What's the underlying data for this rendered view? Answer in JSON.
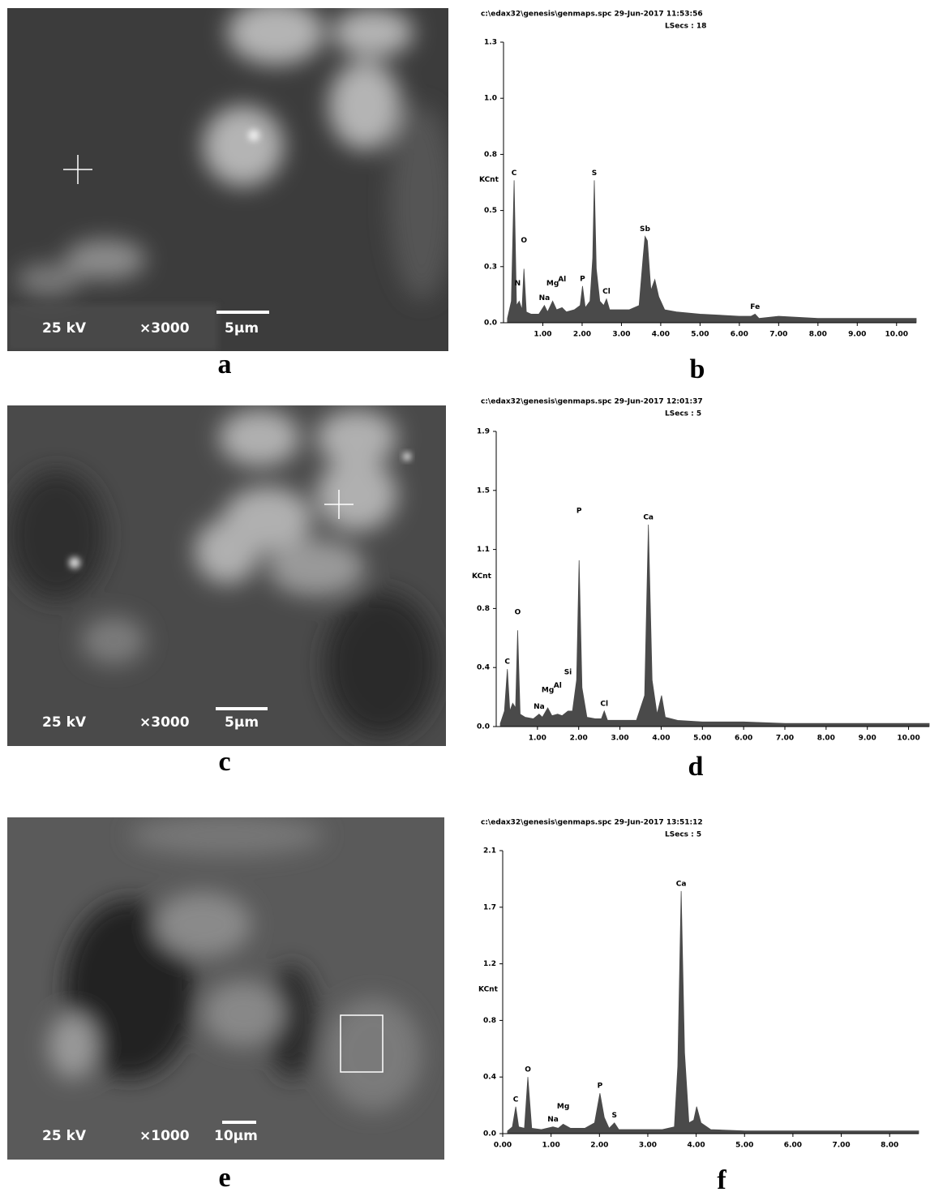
{
  "images": [
    {
      "label": "a",
      "voltage": "25 kV",
      "magnification": "×3000",
      "scale_bar": "5μm"
    },
    {
      "label": "c",
      "voltage": "25 kV",
      "magnification": "×3000",
      "scale_bar": "5μm"
    },
    {
      "label": "e",
      "voltage": "25 kV",
      "magnification": "×1000",
      "scale_bar": "10μm"
    }
  ],
  "chart_data": [
    {
      "type": "area",
      "panel_label": "b",
      "header": "c:\\edax32\\genesis\\genmaps.spc  29-Jun-2017 11:53:56",
      "lsecs": "LSecs : 18",
      "ylabel": "KCnt",
      "color": "#4a4a4a",
      "xlim": [
        0,
        10.5
      ],
      "ylim": [
        0,
        1.3
      ],
      "xticks": [
        {
          "value": 1,
          "label": "1.00"
        },
        {
          "value": 2,
          "label": "2.00"
        },
        {
          "value": 3,
          "label": "3.00"
        },
        {
          "value": 4,
          "label": "4.00"
        },
        {
          "value": 5,
          "label": "5.00"
        },
        {
          "value": 6,
          "label": "6.00"
        },
        {
          "value": 7,
          "label": "7.00"
        },
        {
          "value": 8,
          "label": "8.00"
        },
        {
          "value": 9,
          "label": "9.00"
        },
        {
          "value": 10,
          "label": "10.00"
        }
      ],
      "yticks": [
        {
          "value": 0,
          "label": "0.0"
        },
        {
          "value": 0.26,
          "label": "0.3"
        },
        {
          "value": 0.52,
          "label": "0.5"
        },
        {
          "value": 0.78,
          "label": "0.8"
        },
        {
          "value": 1.04,
          "label": "1.0"
        },
        {
          "value": 1.3,
          "label": "1.3"
        }
      ],
      "x": [
        0.1,
        0.2,
        0.27,
        0.33,
        0.4,
        0.47,
        0.52,
        0.58,
        0.7,
        0.9,
        1.04,
        1.12,
        1.25,
        1.35,
        1.49,
        1.6,
        1.8,
        1.95,
        2.01,
        2.08,
        2.2,
        2.27,
        2.31,
        2.36,
        2.45,
        2.55,
        2.62,
        2.7,
        2.9,
        3.2,
        3.45,
        3.55,
        3.6,
        3.66,
        3.75,
        3.85,
        3.95,
        4.1,
        4.4,
        5,
        6,
        6.3,
        6.4,
        6.5,
        7,
        8,
        9,
        10,
        10.5
      ],
      "values": [
        0.02,
        0.1,
        0.66,
        0.08,
        0.1,
        0.06,
        0.25,
        0.05,
        0.04,
        0.04,
        0.08,
        0.05,
        0.1,
        0.06,
        0.07,
        0.05,
        0.06,
        0.08,
        0.17,
        0.07,
        0.1,
        0.3,
        0.66,
        0.25,
        0.1,
        0.08,
        0.11,
        0.06,
        0.06,
        0.06,
        0.08,
        0.3,
        0.4,
        0.38,
        0.15,
        0.2,
        0.12,
        0.06,
        0.05,
        0.04,
        0.03,
        0.03,
        0.04,
        0.02,
        0.03,
        0.02,
        0.02,
        0.02,
        0.02
      ],
      "annotations": [
        {
          "text": "C",
          "x": 0.27
        },
        {
          "text": "N",
          "x": 0.36
        },
        {
          "text": "O",
          "x": 0.52
        },
        {
          "text": "Na",
          "x": 1.04
        },
        {
          "text": "Mg",
          "x": 1.25
        },
        {
          "text": "Al",
          "x": 1.49
        },
        {
          "text": "P",
          "x": 2.01
        },
        {
          "text": "S",
          "x": 2.31
        },
        {
          "text": "Cl",
          "x": 2.62
        },
        {
          "text": "Sb",
          "x": 3.6
        },
        {
          "text": "Fe",
          "x": 6.4
        }
      ]
    },
    {
      "type": "area",
      "panel_label": "d",
      "header": "c:\\edax32\\genesis\\genmaps.spc  29-Jun-2017 12:01:37",
      "lsecs": "LSecs : 5",
      "ylabel": "KCnt",
      "color": "#4a4a4a",
      "xlim": [
        0,
        10.5
      ],
      "ylim": [
        0,
        1.9
      ],
      "xticks": [
        {
          "value": 1,
          "label": "1.00"
        },
        {
          "value": 2,
          "label": "2.00"
        },
        {
          "value": 3,
          "label": "3.00"
        },
        {
          "value": 4,
          "label": "4.00"
        },
        {
          "value": 5,
          "label": "5.00"
        },
        {
          "value": 6,
          "label": "6.00"
        },
        {
          "value": 7,
          "label": "7.00"
        },
        {
          "value": 8,
          "label": "8.00"
        },
        {
          "value": 9,
          "label": "9.00"
        },
        {
          "value": 10,
          "label": "10.00"
        }
      ],
      "yticks": [
        {
          "value": 0,
          "label": "0.0"
        },
        {
          "value": 0.38,
          "label": "0.4"
        },
        {
          "value": 0.76,
          "label": "0.8"
        },
        {
          "value": 1.14,
          "label": "1.1"
        },
        {
          "value": 1.52,
          "label": "1.5"
        },
        {
          "value": 1.9,
          "label": "1.9"
        }
      ],
      "x": [
        0.1,
        0.2,
        0.27,
        0.33,
        0.4,
        0.47,
        0.52,
        0.58,
        0.7,
        0.9,
        1.04,
        1.12,
        1.25,
        1.35,
        1.49,
        1.6,
        1.74,
        1.85,
        1.95,
        2.01,
        2.08,
        2.2,
        2.4,
        2.55,
        2.62,
        2.7,
        3.0,
        3.4,
        3.6,
        3.69,
        3.78,
        3.9,
        4.01,
        4.1,
        4.4,
        5,
        6,
        7,
        8,
        9,
        10,
        10.5
      ],
      "values": [
        0.02,
        0.1,
        0.37,
        0.1,
        0.15,
        0.12,
        0.62,
        0.08,
        0.06,
        0.05,
        0.08,
        0.06,
        0.12,
        0.07,
        0.08,
        0.07,
        0.1,
        0.1,
        0.3,
        1.07,
        0.25,
        0.06,
        0.05,
        0.05,
        0.1,
        0.04,
        0.04,
        0.04,
        0.2,
        1.3,
        0.3,
        0.08,
        0.2,
        0.06,
        0.04,
        0.03,
        0.03,
        0.02,
        0.02,
        0.02,
        0.02,
        0.02
      ],
      "annotations": [
        {
          "text": "C",
          "x": 0.27
        },
        {
          "text": "O",
          "x": 0.52
        },
        {
          "text": "Na",
          "x": 1.04
        },
        {
          "text": "Mg",
          "x": 1.25
        },
        {
          "text": "Al",
          "x": 1.49
        },
        {
          "text": "Si",
          "x": 1.74
        },
        {
          "text": "P",
          "x": 2.01
        },
        {
          "text": "Cl",
          "x": 2.62
        },
        {
          "text": "Ca",
          "x": 3.69
        }
      ]
    },
    {
      "type": "area",
      "panel_label": "f",
      "header": "c:\\edax32\\genesis\\genmaps.spc  29-Jun-2017 13:51:12",
      "lsecs": "LSecs : 5",
      "ylabel": "KCnt",
      "color": "#4a4a4a",
      "xlim": [
        0,
        8.6
      ],
      "ylim": [
        0,
        2.1
      ],
      "xticks": [
        {
          "value": 0,
          "label": "0.00"
        },
        {
          "value": 1,
          "label": "1.00"
        },
        {
          "value": 2,
          "label": "2.00"
        },
        {
          "value": 3,
          "label": "3.00"
        },
        {
          "value": 4,
          "label": "4.00"
        },
        {
          "value": 5,
          "label": "5.00"
        },
        {
          "value": 6,
          "label": "6.00"
        },
        {
          "value": 7,
          "label": "7.00"
        },
        {
          "value": 8,
          "label": "8.00"
        }
      ],
      "yticks": [
        {
          "value": 0,
          "label": "0.0"
        },
        {
          "value": 0.42,
          "label": "0.4"
        },
        {
          "value": 0.84,
          "label": "0.8"
        },
        {
          "value": 1.26,
          "label": "1.2"
        },
        {
          "value": 1.68,
          "label": "1.7"
        },
        {
          "value": 2.1,
          "label": "2.1"
        }
      ],
      "x": [
        0.1,
        0.2,
        0.27,
        0.33,
        0.45,
        0.52,
        0.6,
        0.8,
        1.04,
        1.15,
        1.25,
        1.4,
        1.7,
        1.9,
        2.01,
        2.1,
        2.2,
        2.31,
        2.4,
        2.8,
        3.3,
        3.55,
        3.62,
        3.69,
        3.76,
        3.85,
        3.95,
        4.01,
        4.1,
        4.3,
        5,
        6,
        7,
        8,
        8.6
      ],
      "values": [
        0.02,
        0.05,
        0.2,
        0.05,
        0.04,
        0.42,
        0.04,
        0.03,
        0.05,
        0.04,
        0.07,
        0.04,
        0.04,
        0.08,
        0.3,
        0.12,
        0.04,
        0.08,
        0.03,
        0.03,
        0.03,
        0.05,
        0.5,
        1.8,
        0.6,
        0.08,
        0.1,
        0.2,
        0.08,
        0.03,
        0.02,
        0.02,
        0.02,
        0.02,
        0.02
      ],
      "annotations": [
        {
          "text": "C",
          "x": 0.27
        },
        {
          "text": "O",
          "x": 0.52
        },
        {
          "text": "Na",
          "x": 1.04
        },
        {
          "text": "Mg",
          "x": 1.25
        },
        {
          "text": "P",
          "x": 2.01
        },
        {
          "text": "S",
          "x": 2.31
        },
        {
          "text": "Ca",
          "x": 3.69
        }
      ]
    }
  ]
}
